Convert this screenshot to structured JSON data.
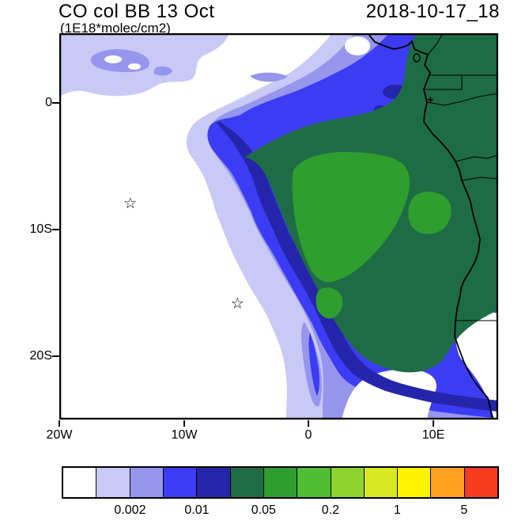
{
  "header": {
    "title": "CO col BB 13 Oct",
    "subtitle": "(1E18*molec/cm2)",
    "datetime": "2018-10-17_18"
  },
  "axes": {
    "y_tick_labels": [
      "0",
      "10S",
      "20S"
    ],
    "x_tick_labels": [
      "20W",
      "10W",
      "0",
      "10E"
    ]
  },
  "chart_data": {
    "type": "heatmap",
    "title": "CO col BB 13 Oct",
    "units": "1E18*molec/cm2",
    "valid_time": "2018-10-17_18",
    "emission_day_label": "13 Oct",
    "map_extent": {
      "lon_min": -20,
      "lon_max": 15.2,
      "lat_min": -25,
      "lat_max": 5.5
    },
    "y_ticks": [
      {
        "label": "0",
        "lat": 0
      },
      {
        "label": "10S",
        "lat": -10
      },
      {
        "label": "20S",
        "lat": -20
      }
    ],
    "x_ticks": [
      {
        "label": "20W",
        "lon": -20
      },
      {
        "label": "10W",
        "lon": -10
      },
      {
        "label": "0",
        "lon": 0
      },
      {
        "label": "10E",
        "lon": 10
      }
    ],
    "palette": [
      "#FFFFFF",
      "#C9C9F6",
      "#9696EE",
      "#3C3CF4",
      "#2525AC",
      "#1E6C46",
      "#2E9E2E",
      "#4FBE34",
      "#8ED42C",
      "#D8E822",
      "#FFF200",
      "#FFA01E",
      "#F53C1E"
    ],
    "contour_levels": [
      0.001,
      0.002,
      0.005,
      0.01,
      0.02,
      0.05,
      0.1,
      0.2,
      0.5,
      1,
      2,
      5
    ],
    "colorbar_labels": [
      {
        "text": "0.002",
        "boundary_index": 2
      },
      {
        "text": "0.01",
        "boundary_index": 4
      },
      {
        "text": "0.05",
        "boundary_index": 6
      },
      {
        "text": "0.2",
        "boundary_index": 8
      },
      {
        "text": "1",
        "boundary_index": 10
      },
      {
        "text": "5",
        "boundary_index": 12
      }
    ],
    "field_description": "Biomass-burning CO column plume over the SE Atlantic off Angola and the Congo basin; maximum shaded level 0.05-0.1 (green) centered near 3E, 11S with a secondary green maximum near 11E, 9S; values decrease south-westward with a sharp dark-blue gradient band arcing from 5S, 9W to the Namibian coast near 23S; low values (white, below 0.001) over the open ocean west and south of the plume.",
    "markers": [
      {
        "shape": "star",
        "lon": -14.3,
        "lat": -8.0
      },
      {
        "shape": "star",
        "lon": -5.7,
        "lat": -15.9
      },
      {
        "shape": "plus",
        "lon": 9.8,
        "lat": 0.2
      }
    ],
    "icons": {
      "star": "☆",
      "plus": "+"
    }
  }
}
